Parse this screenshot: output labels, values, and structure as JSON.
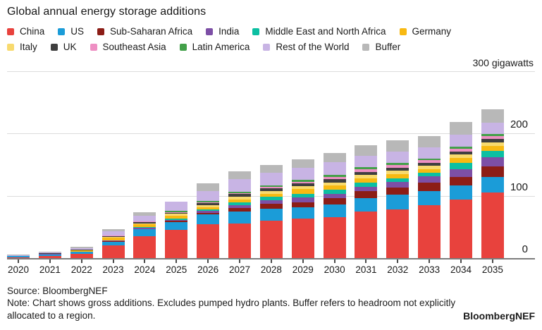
{
  "title": "Global annual energy storage additions",
  "axis_unit_label": "300 gigawatts",
  "footer": {
    "source": "Source: BloombergNEF",
    "note": "Note: Chart shows gross additions. Excludes pumped hydro plants. Buffer refers to headroom not explicitly allocated to a region.",
    "brand": "BloombergNEF"
  },
  "chart_data": {
    "type": "bar",
    "stacked": true,
    "unit": "gigawatts",
    "title": "Global annual energy storage additions",
    "ylim": [
      0,
      300
    ],
    "yticks": [
      0,
      100,
      200,
      300
    ],
    "ytick_labels_shown": [
      "0",
      "100",
      "200"
    ],
    "ytick_top_label": "300 gigawatts",
    "grid": "horizontal",
    "legend_position": "top",
    "legend_rows": 2,
    "categories": [
      "2020",
      "2021",
      "2022",
      "2023",
      "2024",
      "2025",
      "2026",
      "2027",
      "2028",
      "2029",
      "2030",
      "2031",
      "2032",
      "2033",
      "2034",
      "2035"
    ],
    "series": [
      {
        "name": "China",
        "color": "#e8423d",
        "values": [
          1.5,
          3,
          6.5,
          20,
          35,
          45,
          54,
          56,
          60,
          63,
          66,
          75,
          78,
          85,
          94,
          105
        ]
      },
      {
        "name": "US",
        "color": "#1b9cd8",
        "values": [
          1.5,
          3,
          3.5,
          6.5,
          11,
          13,
          16,
          19,
          19,
          18,
          20,
          21,
          24,
          23,
          23,
          25
        ]
      },
      {
        "name": "Sub-Saharan Africa",
        "color": "#8c1d16",
        "values": [
          0.1,
          0.2,
          0.3,
          0.5,
          1,
          1.5,
          3,
          5.5,
          8,
          9,
          10,
          11,
          11,
          13,
          13,
          17
        ]
      },
      {
        "name": "India",
        "color": "#7d4fa6",
        "values": [
          0,
          0.1,
          0.2,
          1,
          1.5,
          2,
          3,
          4.5,
          6,
          7.5,
          7,
          7.5,
          9,
          10,
          13,
          15
        ]
      },
      {
        "name": "Middle East and North Africa",
        "color": "#0cbfa2",
        "values": [
          0,
          0.1,
          0.2,
          0.5,
          1.5,
          2,
          2,
          4.5,
          5,
          6,
          6.5,
          6.5,
          6.5,
          6,
          10,
          10
        ]
      },
      {
        "name": "Germany",
        "color": "#f8b912",
        "values": [
          0.5,
          0.5,
          1.5,
          4,
          4,
          4.5,
          4,
          5,
          5.5,
          7,
          7,
          6.5,
          6,
          6,
          8,
          8
        ]
      },
      {
        "name": "Italy",
        "color": "#f8da6e",
        "values": [
          0.1,
          0.2,
          0.5,
          1,
          2,
          3,
          3,
          4,
          4.5,
          4.5,
          4.5,
          6,
          6,
          5.5,
          5.5,
          5.5
        ]
      },
      {
        "name": "UK",
        "color": "#3f3f3f",
        "values": [
          0.3,
          0.4,
          1,
          2,
          2,
          2,
          3.5,
          4.5,
          4,
          5,
          6,
          5,
          5,
          4.5,
          5,
          6
        ]
      },
      {
        "name": "Southeast Asia",
        "color": "#ee8fc3",
        "values": [
          0,
          0.1,
          0.2,
          0.3,
          0.5,
          1,
          1,
          1.5,
          2.5,
          2.5,
          3.5,
          4.5,
          4,
          4.5,
          4.5,
          4
        ]
      },
      {
        "name": "Latin America",
        "color": "#43a049",
        "values": [
          0,
          0.2,
          0.3,
          0.5,
          1,
          1.5,
          2,
          2.5,
          2.5,
          3,
          3.5,
          3,
          3.5,
          2.5,
          3,
          3.5
        ]
      },
      {
        "name": "Rest of the World",
        "color": "#c8b4e4",
        "values": [
          1,
          1.5,
          2,
          7,
          8,
          15,
          16,
          20,
          20,
          19,
          20,
          18,
          18,
          18,
          19,
          19
        ]
      },
      {
        "name": "Buffer",
        "color": "#b8b8b8",
        "values": [
          0.5,
          0.8,
          1.5,
          3,
          6,
          0,
          13,
          12,
          13,
          14,
          15,
          17,
          18,
          18,
          21,
          21
        ]
      }
    ]
  }
}
